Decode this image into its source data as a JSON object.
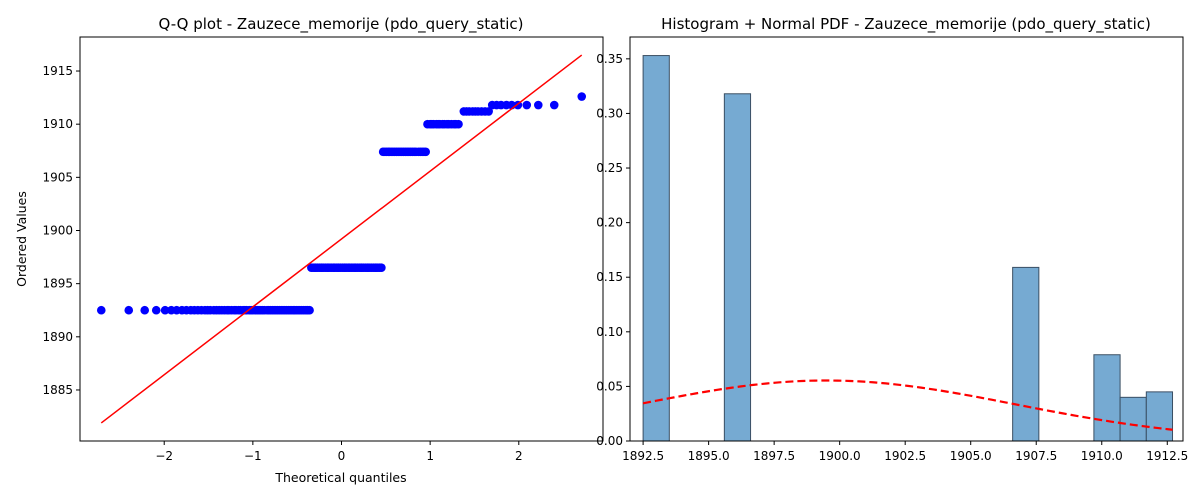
{
  "colors": {
    "qq_points": "#0000ff",
    "qq_line": "#ff0000",
    "hist_fill": "#76aad2",
    "hist_edge": "#3a4f63",
    "pdf_line": "#ff0000",
    "axes": "#000000"
  },
  "chart_data": [
    {
      "type": "scatter",
      "title": "Q-Q plot - Zauzece_memorije (pdo_query_static)",
      "xlabel": "Theoretical quantiles",
      "ylabel": "Ordered Values",
      "xlim": [
        -2.95,
        2.95
      ],
      "ylim": [
        1880.2,
        1918.2
      ],
      "xticks": [
        -2,
        -1,
        0,
        1,
        2
      ],
      "yticks": [
        1885,
        1890,
        1895,
        1900,
        1905,
        1910,
        1915
      ],
      "groups": [
        {
          "value": 1892.5,
          "x": [
            -2.71,
            -2.4,
            -2.22,
            -2.09,
            -1.99,
            -1.92,
            -1.86,
            -1.8,
            -1.75,
            -1.7,
            -1.66,
            -1.62,
            -1.58,
            -1.54,
            -1.51,
            -1.48,
            -1.44,
            -1.41,
            -1.38,
            -1.35,
            -1.32,
            -1.29,
            -1.27,
            -1.24,
            -1.21,
            -1.19,
            -1.16,
            -1.14,
            -1.11,
            -1.09,
            -1.07,
            -1.04,
            -1.02,
            -1.0,
            -0.97,
            -0.95,
            -0.93,
            -0.91,
            -0.89,
            -0.87,
            -0.84,
            -0.82,
            -0.8,
            -0.78,
            -0.76,
            -0.74,
            -0.72,
            -0.7,
            -0.68,
            -0.66,
            -0.64,
            -0.62,
            -0.6,
            -0.58,
            -0.56,
            -0.54,
            -0.53,
            -0.51,
            -0.49,
            -0.47,
            -0.45,
            -0.43,
            -0.41,
            -0.39,
            -0.38,
            -0.36
          ]
        },
        {
          "value": 1896.5,
          "x": [
            -0.34,
            -0.32,
            -0.3,
            -0.29,
            -0.27,
            -0.25,
            -0.23,
            -0.22,
            -0.2,
            -0.18,
            -0.16,
            -0.15,
            -0.13,
            -0.11,
            -0.09,
            -0.08,
            -0.06,
            -0.04,
            -0.03,
            -0.01,
            0.01,
            0.03,
            0.04,
            0.06,
            0.08,
            0.09,
            0.11,
            0.13,
            0.15,
            0.16,
            0.18,
            0.2,
            0.22,
            0.23,
            0.25,
            0.27,
            0.29,
            0.3,
            0.32,
            0.34,
            0.36,
            0.38,
            0.39,
            0.41,
            0.43,
            0.45
          ]
        },
        {
          "value": 1907.4,
          "x": [
            0.47,
            0.49,
            0.51,
            0.53,
            0.54,
            0.56,
            0.58,
            0.6,
            0.62,
            0.64,
            0.66,
            0.68,
            0.7,
            0.72,
            0.74,
            0.76,
            0.78,
            0.8,
            0.82,
            0.84,
            0.87,
            0.89,
            0.91,
            0.93,
            0.95
          ]
        },
        {
          "value": 1910.0,
          "x": [
            0.97,
            1.0,
            1.02,
            1.04,
            1.07,
            1.09,
            1.11,
            1.14,
            1.16,
            1.19,
            1.21,
            1.24,
            1.27,
            1.29,
            1.32
          ]
        },
        {
          "value": 1911.2,
          "x": [
            1.38,
            1.41,
            1.44,
            1.48,
            1.51,
            1.54,
            1.58,
            1.62,
            1.66
          ]
        },
        {
          "value": 1911.8,
          "x": [
            1.7,
            1.75,
            1.8,
            1.86,
            1.92,
            1.99,
            2.09,
            2.22,
            2.4
          ]
        },
        {
          "value": 1912.6,
          "x": [
            2.71
          ]
        }
      ],
      "fit_line": {
        "x": [
          -2.71,
          2.71
        ],
        "y": [
          1881.9,
          1916.5
        ]
      }
    },
    {
      "type": "bar",
      "title": "Histogram + Normal PDF - Zauzece_memorije (pdo_query_static)",
      "xlabel": "",
      "ylabel": "",
      "xlim": [
        1892.0,
        1913.1
      ],
      "ylim": [
        0,
        0.37
      ],
      "xticks": [
        "1892.5",
        "1895.0",
        "1897.5",
        "1900.0",
        "1902.5",
        "1905.0",
        "1907.5",
        "1910.0",
        "1912.5"
      ],
      "yticks": [
        "0.00",
        "0.05",
        "0.10",
        "0.15",
        "0.20",
        "0.25",
        "0.30",
        "0.35"
      ],
      "bins": [
        {
          "start": 1892.5,
          "end": 1893.5,
          "density": 0.353
        },
        {
          "start": 1895.6,
          "end": 1896.6,
          "density": 0.318
        },
        {
          "start": 1906.6,
          "end": 1907.6,
          "density": 0.159
        },
        {
          "start": 1909.7,
          "end": 1910.7,
          "density": 0.079
        },
        {
          "start": 1910.7,
          "end": 1911.7,
          "density": 0.04
        },
        {
          "start": 1911.7,
          "end": 1912.7,
          "density": 0.045
        }
      ],
      "normal_pdf": {
        "mean": 1899.5,
        "std": 7.2,
        "x_range": [
          1892.5,
          1912.7
        ]
      }
    }
  ]
}
